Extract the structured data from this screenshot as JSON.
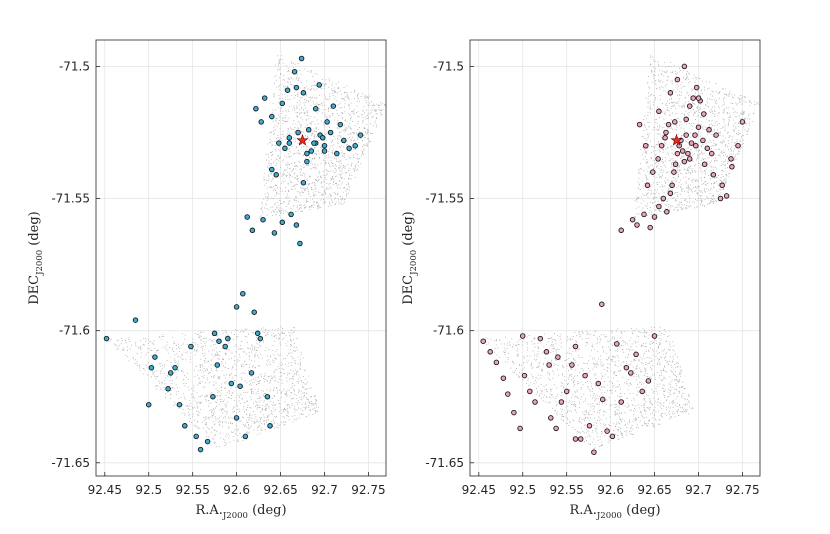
{
  "chart_data": [
    {
      "type": "scatter",
      "panel": "left",
      "xlabel": "R.A.",
      "xlabel_sub": "J2000",
      "xlabel_unit": " (deg)",
      "ylabel": "DEC",
      "ylabel_sub": "J2000",
      "ylabel_unit": " (deg)",
      "xlim": [
        92.44,
        92.77
      ],
      "ylim": [
        -71.655,
        -71.49
      ],
      "xticks": [
        "92.45",
        "92.5",
        "92.55",
        "92.6",
        "92.65",
        "92.7",
        "92.75"
      ],
      "xtick_values": [
        92.45,
        92.5,
        92.55,
        92.6,
        92.65,
        92.7,
        92.75
      ],
      "yticks": [
        "-71.65",
        "-71.6",
        "-71.55",
        "-71.5"
      ],
      "ytick_values": [
        -71.65,
        -71.6,
        -71.55,
        -71.5
      ],
      "grid": true,
      "background_field_color": "#b3b3b3",
      "marker_color": "#3aaed8",
      "marker_edge": "#1a1a1a",
      "center_marker_color": "#e0301e",
      "center": {
        "x": 92.675,
        "y": -71.528
      },
      "regions": [
        {
          "corners": [
            [
              92.578,
              -71.645
            ],
            [
              92.695,
              -71.631
            ],
            [
              92.665,
              -71.598
            ],
            [
              92.45,
              -71.603
            ]
          ]
        },
        {
          "corners": [
            [
              92.625,
              -71.558
            ],
            [
              92.722,
              -71.552
            ],
            [
              92.77,
              -71.514
            ],
            [
              92.645,
              -71.495
            ]
          ]
        }
      ],
      "series": [
        {
          "name": "sources",
          "x": [
            92.452,
            92.485,
            92.507,
            92.5,
            92.535,
            92.525,
            92.503,
            92.522,
            92.541,
            92.554,
            92.559,
            92.567,
            92.573,
            92.578,
            92.58,
            92.594,
            92.59,
            92.587,
            92.6,
            92.61,
            92.604,
            92.617,
            92.627,
            92.624,
            92.635,
            92.638,
            92.6,
            92.62,
            92.607,
            92.575,
            92.548,
            92.53,
            92.618,
            92.612,
            92.63,
            92.643,
            92.652,
            92.662,
            92.668,
            92.672,
            92.676,
            92.68,
            92.685,
            92.69,
            92.695,
            92.7,
            92.707,
            92.714,
            92.722,
            92.728,
            92.735,
            92.741,
            92.66,
            92.655,
            92.67,
            92.682,
            92.688,
            92.698,
            92.703,
            92.648,
            92.64,
            92.628,
            92.622,
            92.632,
            92.658,
            92.666,
            92.674,
            92.694,
            92.71,
            92.69,
            92.676,
            92.668,
            92.652,
            92.64,
            92.645,
            92.66,
            92.68,
            92.7,
            92.718
          ],
          "y": [
            -71.603,
            -71.596,
            -71.61,
            -71.628,
            -71.628,
            -71.616,
            -71.614,
            -71.622,
            -71.636,
            -71.64,
            -71.645,
            -71.642,
            -71.625,
            -71.613,
            -71.604,
            -71.62,
            -71.603,
            -71.606,
            -71.633,
            -71.64,
            -71.621,
            -71.616,
            -71.603,
            -71.601,
            -71.625,
            -71.636,
            -71.591,
            -71.593,
            -71.586,
            -71.601,
            -71.606,
            -71.614,
            -71.562,
            -71.557,
            -71.558,
            -71.563,
            -71.559,
            -71.556,
            -71.56,
            -71.567,
            -71.544,
            -71.536,
            -71.532,
            -71.529,
            -71.526,
            -71.53,
            -71.525,
            -71.533,
            -71.528,
            -71.531,
            -71.53,
            -71.526,
            -71.527,
            -71.531,
            -71.525,
            -71.524,
            -71.529,
            -71.527,
            -71.521,
            -71.529,
            -71.519,
            -71.521,
            -71.516,
            -71.512,
            -71.509,
            -71.502,
            -71.497,
            -71.507,
            -71.515,
            -71.516,
            -71.51,
            -71.508,
            -71.514,
            -71.539,
            -71.541,
            -71.529,
            -71.533,
            -71.532,
            -71.522
          ]
        }
      ]
    },
    {
      "type": "scatter",
      "panel": "right",
      "xlabel": "R.A.",
      "xlabel_sub": "J2000",
      "xlabel_unit": " (deg)",
      "ylabel": "DEC",
      "ylabel_sub": "J2000",
      "ylabel_unit": " (deg)",
      "xlim": [
        92.44,
        92.77
      ],
      "ylim": [
        -71.655,
        -71.49
      ],
      "xticks": [
        "92.45",
        "92.5",
        "92.55",
        "92.6",
        "92.65",
        "92.7",
        "92.75"
      ],
      "xtick_values": [
        92.45,
        92.5,
        92.55,
        92.6,
        92.65,
        92.7,
        92.75
      ],
      "yticks": [
        "-71.65",
        "-71.6",
        "-71.55",
        "-71.5"
      ],
      "ytick_values": [
        -71.65,
        -71.6,
        -71.55,
        -71.5
      ],
      "grid": true,
      "background_field_color": "#b3b3b3",
      "marker_color": "#f0a3b7",
      "marker_edge": "#1a1a1a",
      "center_marker_color": "#e0301e",
      "center": {
        "x": 92.675,
        "y": -71.528
      },
      "regions": [
        {
          "corners": [
            [
              92.578,
              -71.645
            ],
            [
              92.695,
              -71.631
            ],
            [
              92.665,
              -71.598
            ],
            [
              92.45,
              -71.603
            ]
          ]
        },
        {
          "corners": [
            [
              92.625,
              -71.558
            ],
            [
              92.722,
              -71.552
            ],
            [
              92.77,
              -71.514
            ],
            [
              92.645,
              -71.495
            ]
          ]
        }
      ],
      "series": [
        {
          "name": "sources",
          "x": [
            92.455,
            92.463,
            92.47,
            92.478,
            92.483,
            92.49,
            92.497,
            92.502,
            92.508,
            92.514,
            92.52,
            92.527,
            92.532,
            92.538,
            92.544,
            92.55,
            92.556,
            92.56,
            92.566,
            92.571,
            92.576,
            92.581,
            92.586,
            92.591,
            92.596,
            92.602,
            92.607,
            92.612,
            92.618,
            92.623,
            92.629,
            92.636,
            92.643,
            92.65,
            92.54,
            92.56,
            92.53,
            92.5,
            92.59,
            92.612,
            92.625,
            92.63,
            92.638,
            92.645,
            92.65,
            92.655,
            92.66,
            92.664,
            92.668,
            92.67,
            92.672,
            92.674,
            92.676,
            92.678,
            92.68,
            92.682,
            92.684,
            92.688,
            92.692,
            92.696,
            92.7,
            92.705,
            92.71,
            92.715,
            92.72,
            92.725,
            92.732,
            92.738,
            92.745,
            92.75,
            92.642,
            92.648,
            92.654,
            92.658,
            92.662,
            92.666,
            92.686,
            92.69,
            92.694,
            92.698,
            92.702,
            92.706,
            92.712,
            92.668,
            92.676,
            92.684,
            92.655,
            92.64,
            92.633,
            92.7,
            92.69,
            92.663,
            92.673,
            92.686,
            92.697,
            92.707,
            92.717,
            92.727,
            92.737
          ],
          "y": [
            -71.604,
            -71.608,
            -71.612,
            -71.618,
            -71.624,
            -71.631,
            -71.637,
            -71.617,
            -71.623,
            -71.627,
            -71.603,
            -71.608,
            -71.633,
            -71.637,
            -71.627,
            -71.623,
            -71.613,
            -71.606,
            -71.641,
            -71.617,
            -71.636,
            -71.646,
            -71.62,
            -71.626,
            -71.638,
            -71.64,
            -71.605,
            -71.627,
            -71.614,
            -71.616,
            -71.609,
            -71.623,
            -71.619,
            -71.602,
            -71.61,
            -71.641,
            -71.613,
            -71.602,
            -71.59,
            -71.562,
            -71.558,
            -71.56,
            -71.556,
            -71.561,
            -71.557,
            -71.553,
            -71.55,
            -71.555,
            -71.548,
            -71.545,
            -71.54,
            -71.537,
            -71.533,
            -71.53,
            -71.528,
            -71.532,
            -71.536,
            -71.533,
            -71.529,
            -71.526,
            -71.523,
            -71.528,
            -71.531,
            -71.533,
            -71.526,
            -71.55,
            -71.549,
            -71.538,
            -71.53,
            -71.521,
            -71.545,
            -71.54,
            -71.535,
            -71.53,
            -71.527,
            -71.522,
            -71.52,
            -71.515,
            -71.512,
            -71.508,
            -71.513,
            -71.518,
            -71.524,
            -71.51,
            -71.505,
            -71.5,
            -71.517,
            -71.53,
            -71.522,
            -71.512,
            -71.535,
            -71.525,
            -71.521,
            -71.526,
            -71.53,
            -71.537,
            -71.541,
            -71.545,
            -71.535
          ]
        }
      ]
    }
  ]
}
